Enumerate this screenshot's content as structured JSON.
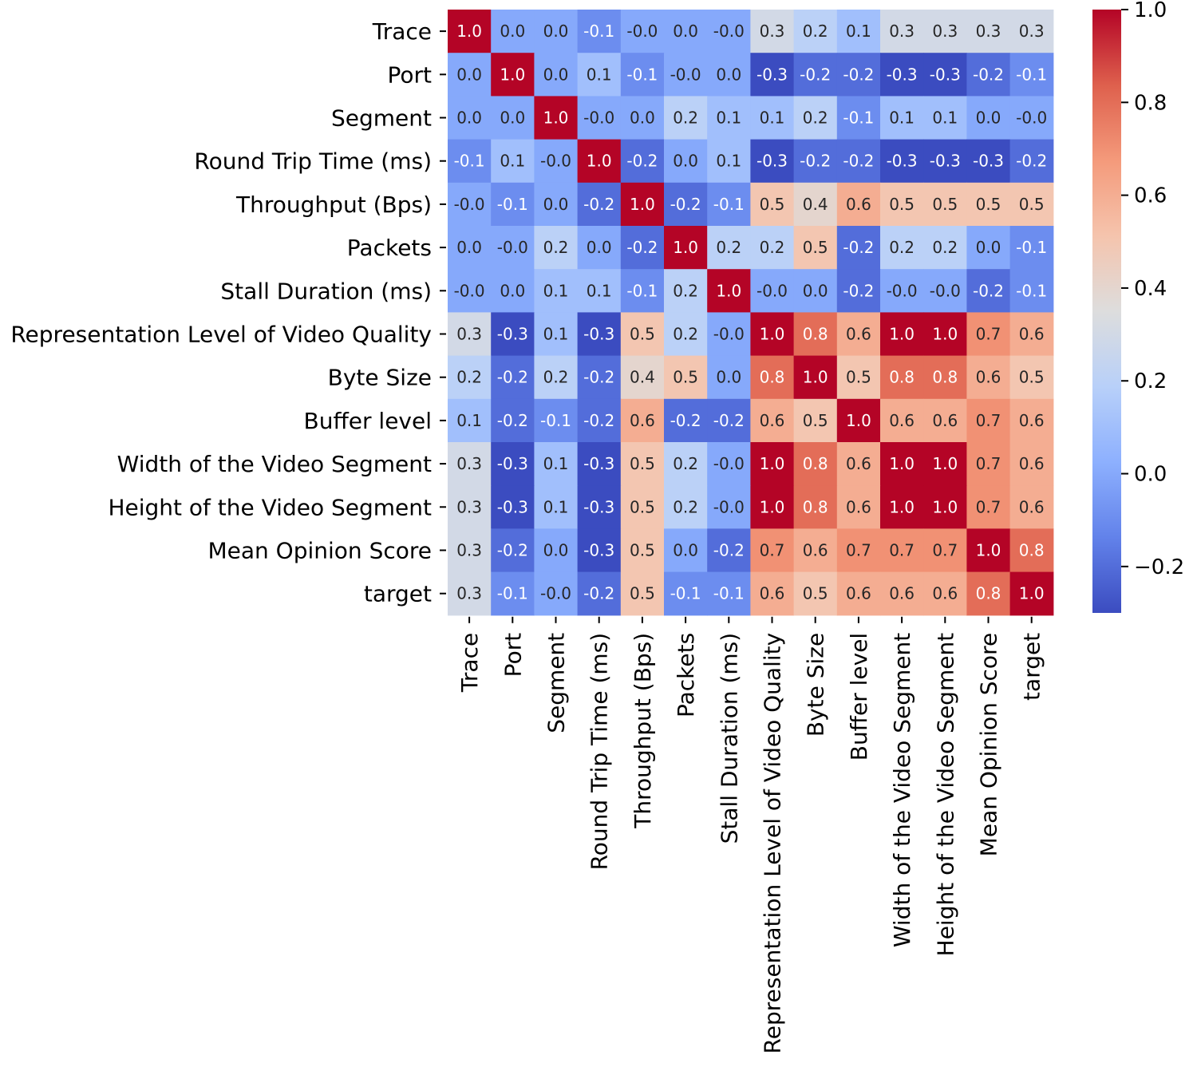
{
  "chart_data": {
    "type": "heatmap",
    "title": "",
    "xlabel": "",
    "ylabel": "",
    "rows": [
      "Trace",
      "Port",
      "Segment",
      "Round Trip Time (ms)",
      "Throughput (Bps)",
      "Packets",
      "Stall Duration (ms)",
      "Representation Level of Video Quality",
      "Byte Size",
      "Buffer level",
      "Width of the Video Segment",
      "Height of the Video Segment",
      "Mean Opinion Score",
      "target"
    ],
    "columns": [
      "Trace",
      "Port",
      "Segment",
      "Round Trip Time (ms)",
      "Throughput (Bps)",
      "Packets",
      "Stall Duration (ms)",
      "Representation Level of Video Quality",
      "Byte Size",
      "Buffer level",
      "Width of the Video Segment",
      "Height of the Video Segment",
      "Mean Opinion Score",
      "target"
    ],
    "values": [
      [
        1.0,
        0.0,
        0.0,
        -0.1,
        -0.0,
        0.0,
        -0.0,
        0.3,
        0.2,
        0.1,
        0.3,
        0.3,
        0.3,
        0.3
      ],
      [
        0.0,
        1.0,
        0.0,
        0.1,
        -0.1,
        -0.0,
        0.0,
        -0.3,
        -0.2,
        -0.2,
        -0.3,
        -0.3,
        -0.2,
        -0.1
      ],
      [
        0.0,
        0.0,
        1.0,
        -0.0,
        0.0,
        0.2,
        0.1,
        0.1,
        0.2,
        -0.1,
        0.1,
        0.1,
        0.0,
        -0.0
      ],
      [
        -0.1,
        0.1,
        -0.0,
        1.0,
        -0.2,
        0.0,
        0.1,
        -0.3,
        -0.2,
        -0.2,
        -0.3,
        -0.3,
        -0.3,
        -0.2
      ],
      [
        -0.0,
        -0.1,
        0.0,
        -0.2,
        1.0,
        -0.2,
        -0.1,
        0.5,
        0.4,
        0.6,
        0.5,
        0.5,
        0.5,
        0.5
      ],
      [
        0.0,
        -0.0,
        0.2,
        0.0,
        -0.2,
        1.0,
        0.2,
        0.2,
        0.5,
        -0.2,
        0.2,
        0.2,
        0.0,
        -0.1
      ],
      [
        -0.0,
        0.0,
        0.1,
        0.1,
        -0.1,
        0.2,
        1.0,
        -0.0,
        0.0,
        -0.2,
        -0.0,
        -0.0,
        -0.2,
        -0.1
      ],
      [
        0.3,
        -0.3,
        0.1,
        -0.3,
        0.5,
        0.2,
        -0.0,
        1.0,
        0.8,
        0.6,
        1.0,
        1.0,
        0.7,
        0.6
      ],
      [
        0.2,
        -0.2,
        0.2,
        -0.2,
        0.4,
        0.5,
        0.0,
        0.8,
        1.0,
        0.5,
        0.8,
        0.8,
        0.6,
        0.5
      ],
      [
        0.1,
        -0.2,
        -0.1,
        -0.2,
        0.6,
        -0.2,
        -0.2,
        0.6,
        0.5,
        1.0,
        0.6,
        0.6,
        0.7,
        0.6
      ],
      [
        0.3,
        -0.3,
        0.1,
        -0.3,
        0.5,
        0.2,
        -0.0,
        1.0,
        0.8,
        0.6,
        1.0,
        1.0,
        0.7,
        0.6
      ],
      [
        0.3,
        -0.3,
        0.1,
        -0.3,
        0.5,
        0.2,
        -0.0,
        1.0,
        0.8,
        0.6,
        1.0,
        1.0,
        0.7,
        0.6
      ],
      [
        0.3,
        -0.2,
        0.0,
        -0.3,
        0.5,
        0.0,
        -0.2,
        0.7,
        0.6,
        0.7,
        0.7,
        0.7,
        1.0,
        0.8
      ],
      [
        0.3,
        -0.1,
        -0.0,
        -0.2,
        0.5,
        -0.1,
        -0.1,
        0.6,
        0.5,
        0.6,
        0.6,
        0.6,
        0.8,
        1.0
      ]
    ],
    "colormap": "coolwarm",
    "vmin": -0.3,
    "vmax": 1.0,
    "colorbar_ticks": [
      1.0,
      0.8,
      0.6,
      0.4,
      0.2,
      0.0,
      -0.2
    ],
    "colorbar_tick_labels": [
      "1.0",
      "0.8",
      "0.6",
      "0.4",
      "0.2",
      "0.0",
      "−0.2"
    ],
    "annotations": "cell values shown with one decimal",
    "grid": false,
    "legend": "colorbar-right"
  }
}
